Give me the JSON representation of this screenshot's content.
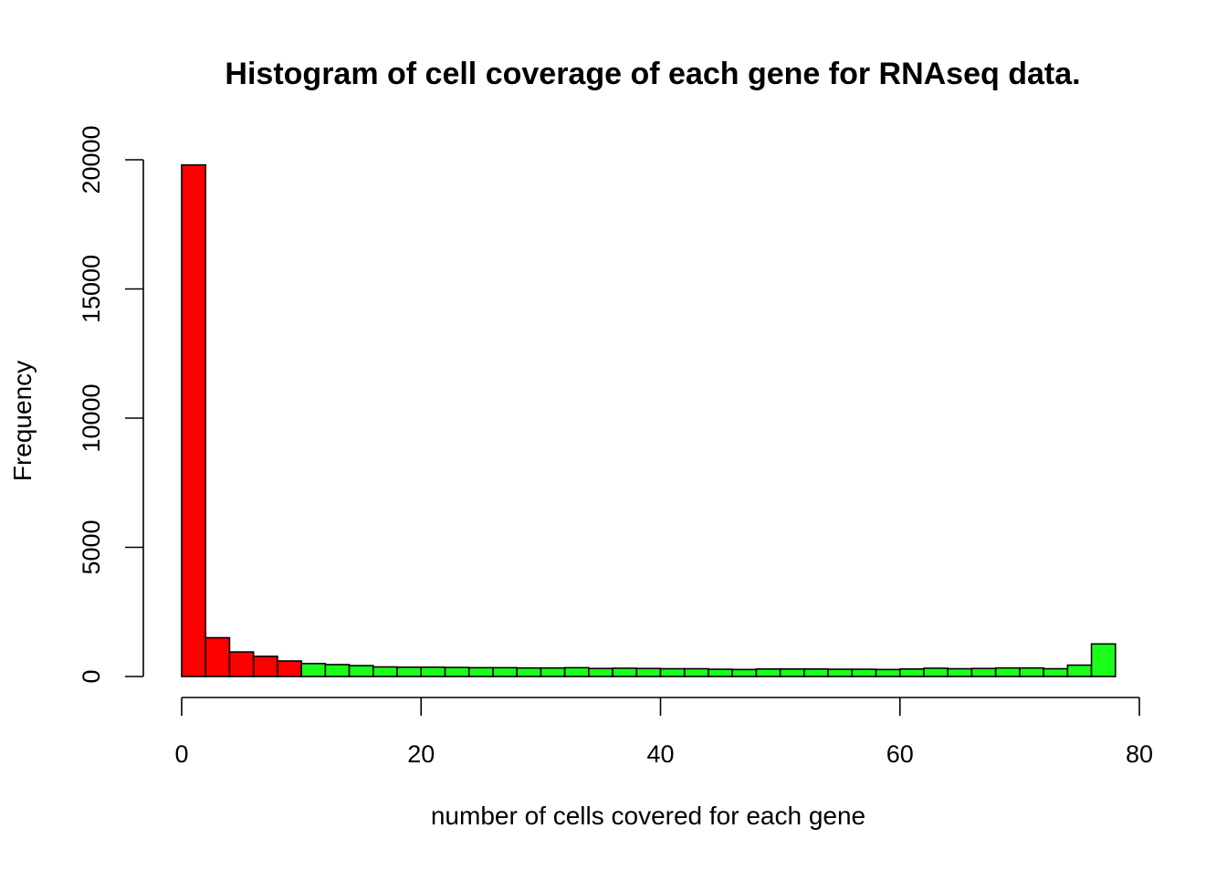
{
  "chart_data": {
    "type": "bar",
    "title": "Histogram of cell coverage of each gene for RNAseq data.",
    "xlabel": "number of cells covered for each gene",
    "ylabel": "Frequency",
    "xlim": [
      0,
      80
    ],
    "ylim": [
      0,
      20000
    ],
    "x_ticks": [
      0,
      20,
      40,
      60,
      80
    ],
    "y_ticks": [
      0,
      5000,
      10000,
      15000,
      20000
    ],
    "x_tick_labels": [
      "0",
      "20",
      "40",
      "60",
      "80"
    ],
    "y_tick_labels": [
      "0",
      "5000",
      "10000",
      "15000",
      "20000"
    ],
    "bin_width": 2,
    "bin_start": 0,
    "values": [
      19800,
      1500,
      950,
      780,
      600,
      500,
      460,
      420,
      370,
      360,
      360,
      350,
      340,
      340,
      330,
      330,
      340,
      310,
      320,
      310,
      300,
      300,
      280,
      270,
      290,
      290,
      290,
      280,
      280,
      270,
      290,
      320,
      300,
      310,
      330,
      330,
      300,
      440,
      1260
    ],
    "bar_colors": [
      "#ff0000",
      "#ff0000",
      "#ff0000",
      "#ff0000",
      "#ff0000",
      "#1aff1a",
      "#1aff1a",
      "#1aff1a",
      "#1aff1a",
      "#1aff1a",
      "#1aff1a",
      "#1aff1a",
      "#1aff1a",
      "#1aff1a",
      "#1aff1a",
      "#1aff1a",
      "#1aff1a",
      "#1aff1a",
      "#1aff1a",
      "#1aff1a",
      "#1aff1a",
      "#1aff1a",
      "#1aff1a",
      "#1aff1a",
      "#1aff1a",
      "#1aff1a",
      "#1aff1a",
      "#1aff1a",
      "#1aff1a",
      "#1aff1a",
      "#1aff1a",
      "#1aff1a",
      "#1aff1a",
      "#1aff1a",
      "#1aff1a",
      "#1aff1a",
      "#1aff1a",
      "#1aff1a",
      "#1aff1a"
    ],
    "grid": false,
    "legend": "none"
  }
}
